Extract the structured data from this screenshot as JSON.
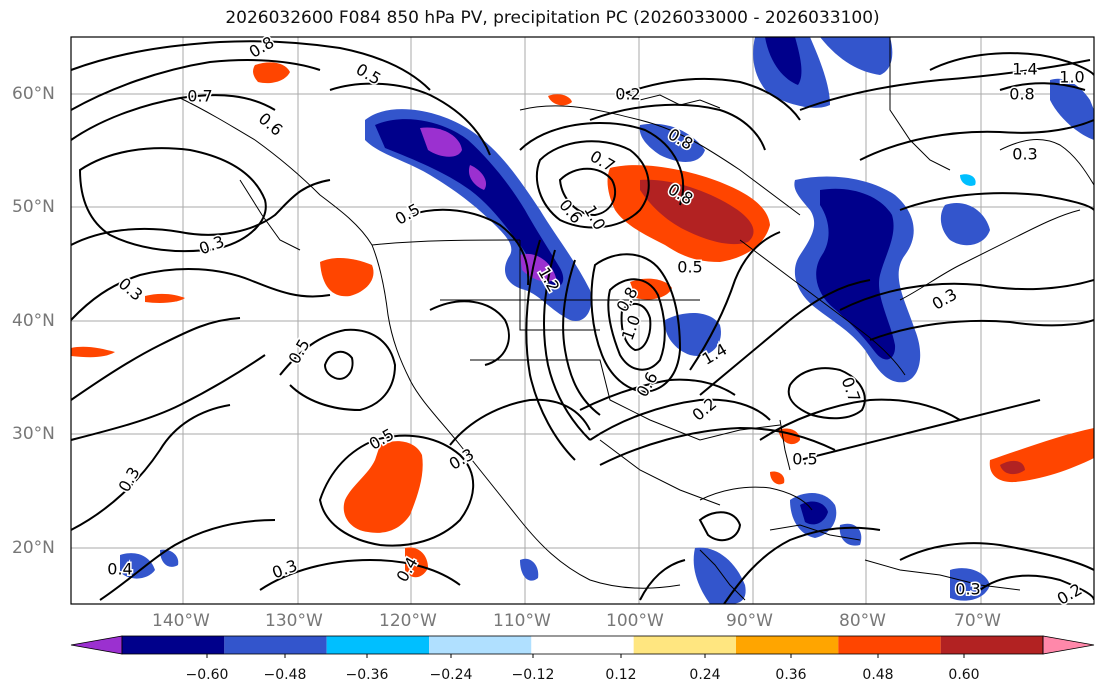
{
  "title": "2026032600 F084 850 hPa PV, precipitation PC (2026033000 - 2026033100)",
  "map": {
    "lat_labels": [
      "60°N",
      "50°N",
      "40°N",
      "30°N",
      "20°N"
    ],
    "lon_labels": [
      "140°W",
      "130°W",
      "120°W",
      "110°W",
      "100°W",
      "90°W",
      "80°W",
      "70°W"
    ],
    "lon_range": [
      -149,
      -60
    ],
    "lat_range": [
      15,
      65
    ],
    "gridlines": true,
    "contour_labels": [
      "0.8",
      "0.5",
      "0.7",
      "0.6",
      "0.3",
      "0.5",
      "0.3",
      "0.5",
      "0.5",
      "0.3",
      "0.3",
      "0.3",
      "0.4",
      "0.4",
      "0.2",
      "0.8",
      "0.7",
      "0.8",
      "0.6",
      "1.0",
      "1.2",
      "0.5",
      "0.8",
      "1.0",
      "1.4",
      "0.6",
      "0.7",
      "0.5",
      "0.3",
      "0.3",
      "0.2",
      "1.4",
      "1.0",
      "0.8",
      "0.3",
      "0.2"
    ]
  },
  "colorbar": {
    "tick_labels": [
      "−0.60",
      "−0.48",
      "−0.36",
      "−0.24",
      "−0.12",
      "0.12",
      "0.24",
      "0.36",
      "0.48",
      "0.60"
    ],
    "colors": [
      "#9b30d0",
      "#00008b",
      "#3355cc",
      "#00bfff",
      "#b0e0ff",
      "#ffffff",
      "#ffe680",
      "#ffa500",
      "#ff4500",
      "#b22222",
      "#ff88aa"
    ]
  }
}
